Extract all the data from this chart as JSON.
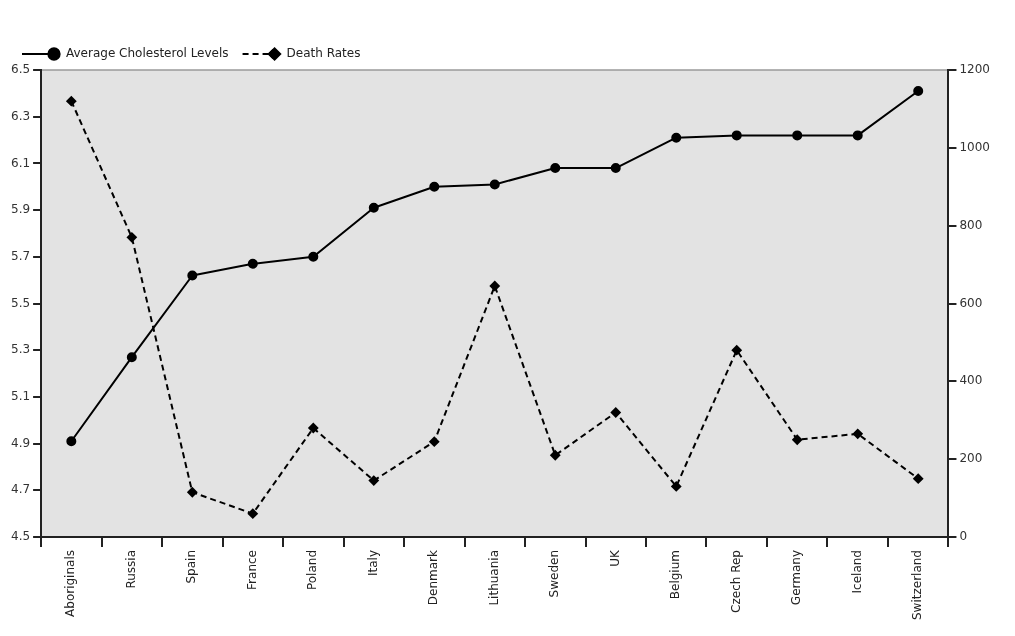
{
  "chart_data": {
    "type": "line",
    "categories": [
      "Aboriginals",
      "Russia",
      "Spain",
      "France",
      "Poland",
      "Italy",
      "Denmark",
      "Lithuania",
      "Sweden",
      "UK",
      "Belgium",
      "Czech Rep",
      "Germany",
      "Iceland",
      "Switzerland"
    ],
    "series": [
      {
        "name": "Average Cholesterol Levels",
        "color": "#000000",
        "marker": "circle",
        "line_style": "solid",
        "values": [
          4.91,
          5.27,
          5.62,
          5.67,
          5.7,
          5.91,
          6.0,
          6.01,
          6.08,
          6.08,
          6.21,
          6.22,
          6.22,
          6.22,
          6.41
        ]
      },
      {
        "name": "Death Rates",
        "color": "#000000",
        "marker": "diamond",
        "line_style": "dashed",
        "axis": "y2",
        "values": [
          1120,
          770,
          115,
          60,
          280,
          145,
          245,
          645,
          210,
          320,
          130,
          480,
          250,
          265,
          150
        ]
      }
    ],
    "ylim": [
      4.5,
      6.5
    ],
    "yticks": [
      4.5,
      4.7,
      4.9,
      5.1,
      5.3,
      5.5,
      5.7,
      5.9,
      6.1,
      6.3,
      6.5
    ],
    "y2lim": [
      0,
      1200
    ],
    "y2ticks": [
      0,
      200,
      400,
      600,
      800,
      1000,
      1200
    ],
    "grid": false,
    "legend": "top left"
  }
}
